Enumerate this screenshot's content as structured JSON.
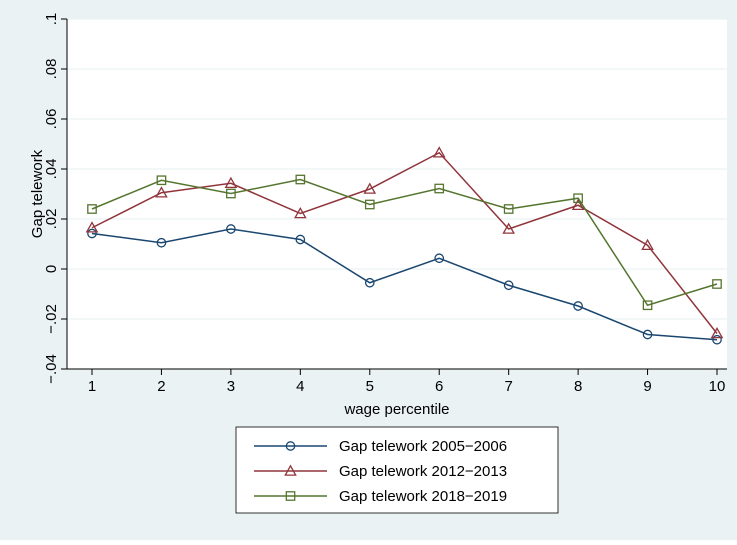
{
  "chart_data": {
    "type": "line",
    "title": "",
    "xlabel": "wage percentile",
    "ylabel": "Gap telework",
    "x": [
      1,
      2,
      3,
      4,
      5,
      6,
      7,
      8,
      9,
      10
    ],
    "x_tick_labels": [
      "1",
      "2",
      "3",
      "4",
      "5",
      "6",
      "7",
      "8",
      "9",
      "10"
    ],
    "xlim": [
      1,
      10
    ],
    "ylim": [
      -0.04,
      0.1
    ],
    "y_ticks": [
      -0.04,
      -0.02,
      0,
      0.02,
      0.04,
      0.06,
      0.08,
      0.1
    ],
    "y_tick_labels": [
      "−.04",
      "−.02",
      "0",
      ".02",
      ".04",
      ".06",
      ".08",
      ".1"
    ],
    "grid": "horizontal",
    "legend_position": "bottom",
    "colors": {
      "outer_background": "#eaf2f3",
      "plot_background": "#ffffff",
      "grid": "#eaf2f3"
    },
    "series": [
      {
        "name": "Gap telework 2005−2006",
        "marker": "circle",
        "color": "#1a476f",
        "values": [
          0.0142,
          0.0105,
          0.016,
          0.0118,
          -0.0055,
          0.0043,
          -0.0065,
          -0.0148,
          -0.0262,
          -0.0283
        ]
      },
      {
        "name": "Gap telework 2012−2013",
        "marker": "triangle",
        "color": "#90353b",
        "values": [
          0.0165,
          0.0305,
          0.0343,
          0.0222,
          0.032,
          0.0465,
          0.016,
          0.0255,
          0.0095,
          -0.0258
        ]
      },
      {
        "name": "Gap telework 2018−2019",
        "marker": "square",
        "color": "#55752f",
        "values": [
          0.024,
          0.0355,
          0.0302,
          0.0358,
          0.0258,
          0.0322,
          0.024,
          0.0283,
          -0.0145,
          -0.006
        ]
      }
    ]
  }
}
